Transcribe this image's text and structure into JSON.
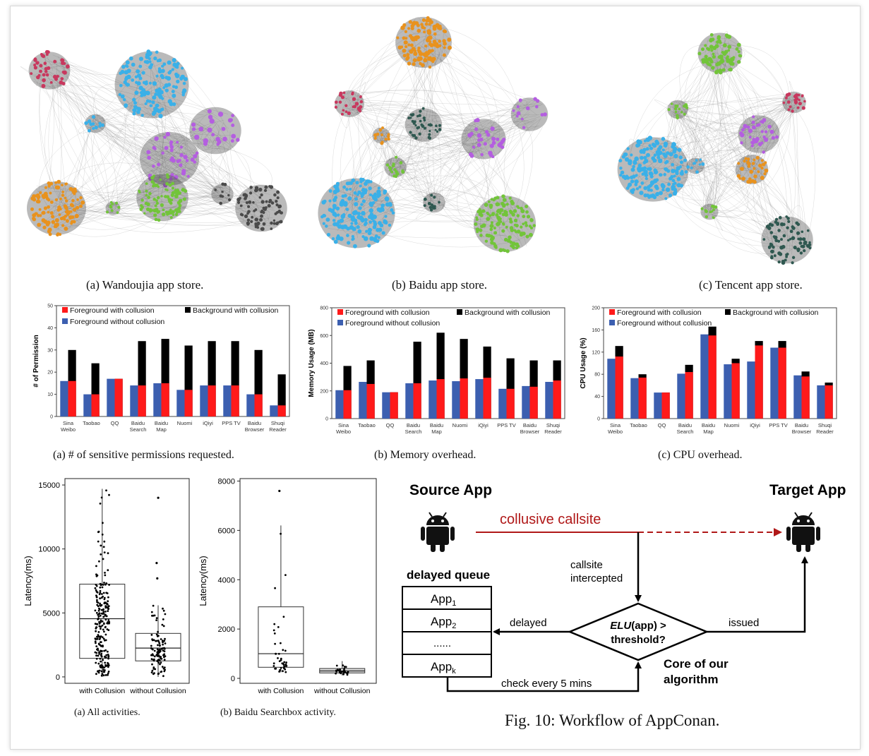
{
  "networks": {
    "colors": {
      "blue": "#3ab0e8",
      "orange": "#e8921e",
      "pink": "#c8385e",
      "green": "#72c43a",
      "purple": "#b45ee0",
      "dark": "#2f5850",
      "gray": "#4a4a4a"
    },
    "captions": [
      "(a) Wandoujia app store.",
      "(b) Baidu app store.",
      "(c) Tencent app store."
    ]
  },
  "bar_charts": {
    "colors": {
      "fg_collusion": "#ff1a1a",
      "bg_collusion": "#000000",
      "fg_without": "#3c5fb0"
    },
    "captions": [
      "(a) # of sensitive permissions requested.",
      "(b) Memory overhead.",
      "(c) CPU overhead."
    ]
  },
  "box_plots": {
    "captions": [
      "(a) All activities.",
      "(b) Baidu Searchbox activity."
    ]
  },
  "workflow": {
    "source_app": "Source App",
    "target_app": "Target App",
    "collusive_callsite": "collusive callsite",
    "callsite_intercepted_1": "callsite",
    "callsite_intercepted_2": "intercepted",
    "delayed_queue": "delayed queue",
    "queue_items": [
      {
        "base": "App",
        "sub": "1"
      },
      {
        "base": "App",
        "sub": "2"
      },
      {
        "base": "......",
        "sub": ""
      },
      {
        "base": "App",
        "sub": "k"
      }
    ],
    "delayed": "delayed",
    "issued": "issued",
    "elu_italic": "ELU",
    "elu_rest": "(app) >",
    "threshold": "threshold?",
    "core_1": "Core of our",
    "core_2": "algorithm",
    "check": "check every 5 mins",
    "fig_caption": "Fig. 10: Workflow of AppConan."
  },
  "chart_data": [
    {
      "type": "bar",
      "ylabel": "# of Permission",
      "ylim": [
        0,
        50
      ],
      "yticks": [
        0,
        10,
        20,
        30,
        40,
        50
      ],
      "categories": [
        "Sina\nWeibo",
        "Taobao",
        "QQ",
        "Baidu\nSearch",
        "Baidu\nMap",
        "Nuomi",
        "iQiyi",
        "PPS TV",
        "Baidu\nBrowser",
        "Shuqi\nReader"
      ],
      "series": [
        {
          "name": "Foreground with collusion",
          "values": [
            16,
            10,
            17,
            14,
            15,
            12,
            14,
            14,
            10,
            5
          ]
        },
        {
          "name": "Background with collusion",
          "values": [
            30,
            24,
            17,
            34,
            35,
            32,
            34,
            34,
            30,
            19
          ]
        },
        {
          "name": "Foreground  without collusion",
          "values": [
            16,
            10,
            17,
            14,
            15,
            12,
            14,
            14,
            10,
            5
          ]
        }
      ]
    },
    {
      "type": "bar",
      "ylabel": "Memory Usage (MB)",
      "ylim": [
        0,
        800
      ],
      "yticks": [
        0,
        200,
        400,
        600,
        800
      ],
      "categories": [
        "Sina\nWeibo",
        "Taobao",
        "QQ",
        "Baidu\nSearch",
        "Baidu\nMap",
        "Nuomi",
        "iQiyi",
        "PPS TV",
        "Baidu\nBrowser",
        "Shuqi\nReader"
      ],
      "series": [
        {
          "name": "Foreground with collusion",
          "values": [
            205,
            250,
            190,
            255,
            285,
            290,
            295,
            215,
            230,
            275
          ]
        },
        {
          "name": "Background with collusion",
          "values": [
            380,
            420,
            190,
            555,
            620,
            575,
            520,
            435,
            420,
            420
          ]
        },
        {
          "name": "Foreground without collusion",
          "values": [
            205,
            265,
            190,
            255,
            275,
            270,
            285,
            215,
            235,
            265
          ]
        }
      ]
    },
    {
      "type": "bar",
      "ylabel": "CPU Usage (%)",
      "ylim": [
        0,
        200
      ],
      "yticks": [
        0,
        40,
        80,
        120,
        160,
        200
      ],
      "categories": [
        "Sina\nWeibo",
        "Taobao",
        "QQ",
        "Baidu\nSearch",
        "Baidu\nMap",
        "Nuomi",
        "iQiyi",
        "PPS TV",
        "Baidu\nBrowser",
        "Shuqi\nReader"
      ],
      "series": [
        {
          "name": "Foreground with collusion",
          "values": [
            112,
            74,
            47,
            84,
            150,
            100,
            132,
            128,
            76,
            60
          ]
        },
        {
          "name": "Background with collusion",
          "values": [
            131,
            80,
            47,
            97,
            166,
            108,
            140,
            140,
            85,
            65
          ]
        },
        {
          "name": "Foreground without collusion",
          "values": [
            108,
            73,
            47,
            81,
            152,
            98,
            103,
            128,
            78,
            60
          ]
        }
      ]
    },
    {
      "type": "box",
      "ylabel": "Latency(ms)",
      "ylim": [
        -500,
        15500
      ],
      "yticks": [
        0,
        5000,
        10000,
        15000
      ],
      "categories": [
        "with Collusion",
        "without Collusion"
      ],
      "boxes": [
        {
          "min": 0,
          "q1": 1450,
          "median": 4550,
          "q3": 7250,
          "max": 14700
        },
        {
          "min": 0,
          "q1": 1250,
          "median": 2250,
          "q3": 3400,
          "max": 5600,
          "outliers": [
            14000,
            8900,
            7700
          ]
        }
      ]
    },
    {
      "type": "box",
      "ylabel": "Latency(ms)",
      "ylim": [
        -200,
        8100
      ],
      "yticks": [
        0,
        2000,
        4000,
        6000,
        8000
      ],
      "categories": [
        "with Collusion",
        "without Collusion"
      ],
      "boxes": [
        {
          "min": 250,
          "q1": 450,
          "median": 1000,
          "q3": 2900,
          "max": 6200,
          "outliers": [
            7600
          ]
        },
        {
          "min": 120,
          "q1": 220,
          "median": 300,
          "q3": 400,
          "max": 700
        }
      ]
    }
  ]
}
